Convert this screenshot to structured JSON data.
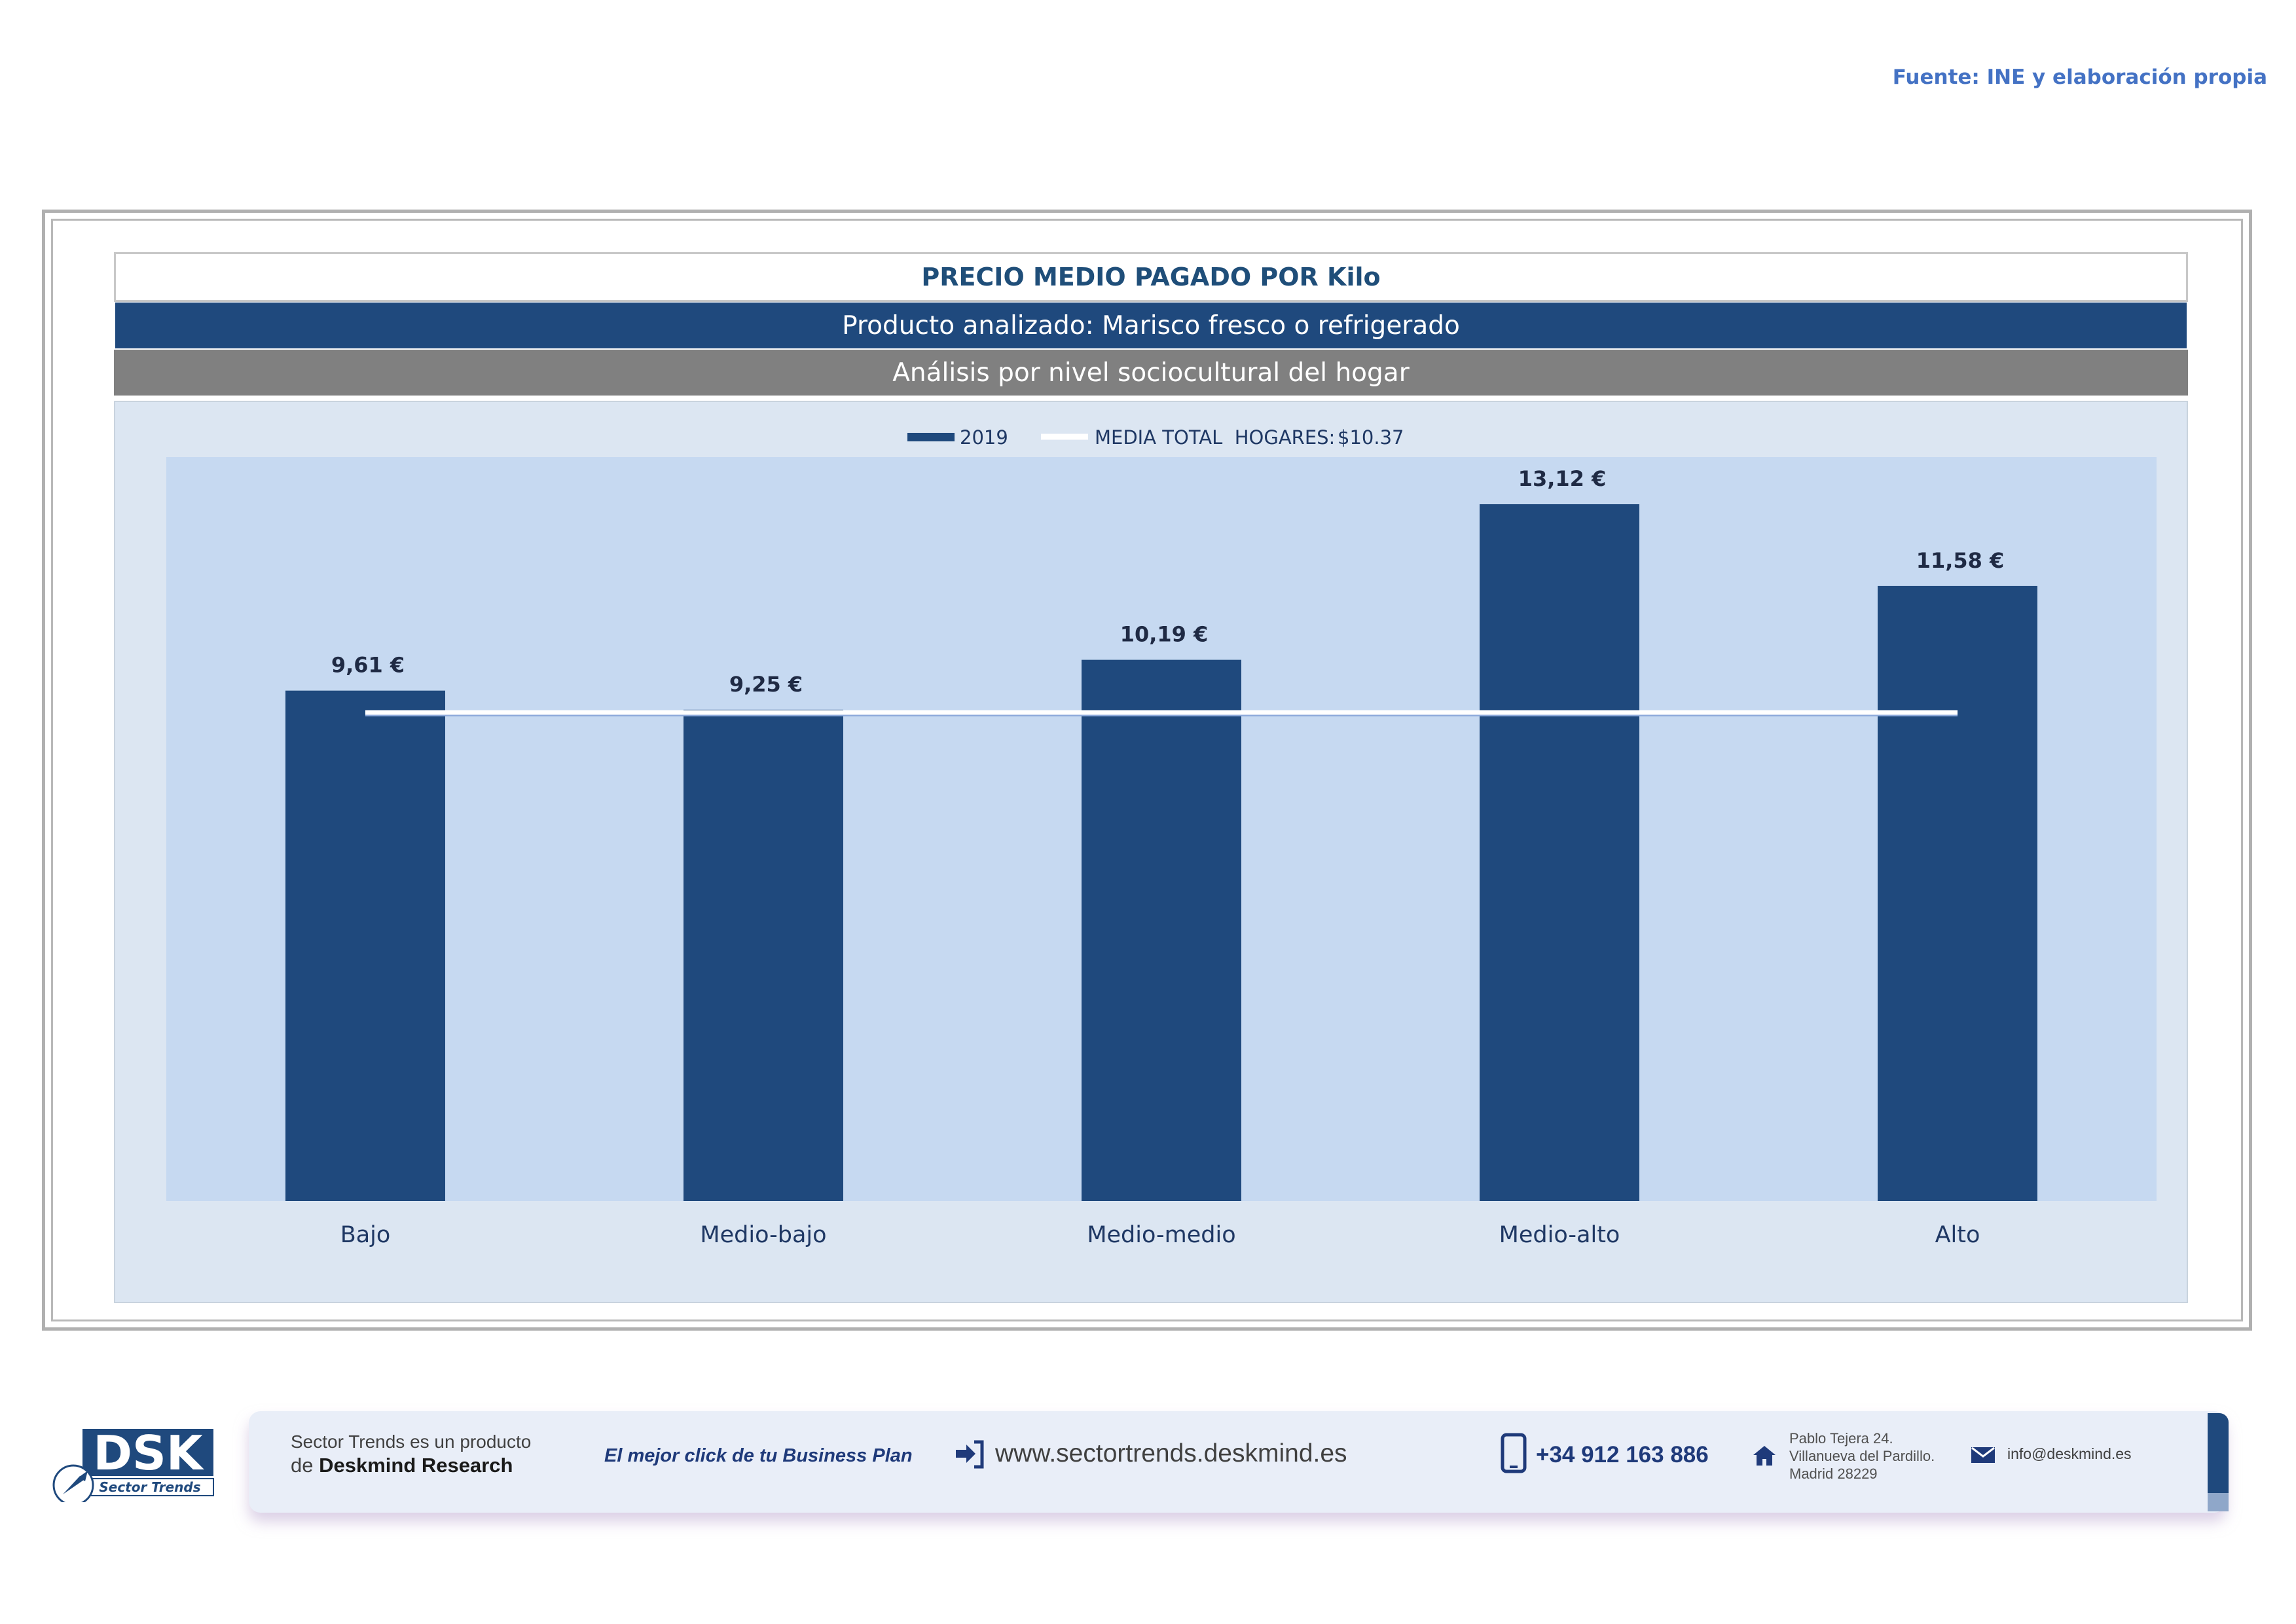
{
  "source": "Fuente: INE y elaboración propia",
  "header": {
    "title": "PRECIO MEDIO PAGADO POR Kilo",
    "product": "Producto analizado: Marisco fresco o refrigerado",
    "analysis": "Análisis por nivel sociocultural del hogar"
  },
  "chart_data": {
    "type": "bar",
    "categories": [
      "Bajo",
      "Medio-bajo",
      "Medio-medio",
      "Medio-alto",
      "Alto"
    ],
    "series": [
      {
        "name": "2019",
        "values": [
          9.61,
          9.25,
          10.19,
          13.12,
          11.58
        ],
        "color": "#1f497d"
      }
    ],
    "value_labels": [
      "9,61 €",
      "9,25 €",
      "10,19 €",
      "13,12 €",
      "11,58 €"
    ],
    "reference_line": {
      "name": "MEDIA TOTAL  HOGARES:",
      "value_label": "$10.37",
      "value": 10.37,
      "color": "#ffffff"
    },
    "ylim": [
      0,
      14
    ],
    "grid": false,
    "legend": "top",
    "plot_background": "#c6d9f1",
    "chart_background": "#dce6f2"
  },
  "footer": {
    "brand_line1": "Sector Trends es un producto",
    "brand_line2_prefix": "de",
    "brand_line2": "Deskmind Research",
    "slogan": "El mejor click de tu Business Plan",
    "website": "www.sectortrends.deskmind.es",
    "phone": "+34 912 163 886",
    "address_line1": "Pablo Tejera 24.",
    "address_line2": "Villanueva del Pardillo.",
    "address_line3": "Madrid 28229",
    "email": "info@deskmind.es",
    "logo_text": "DSK",
    "logo_subtext": "Sector Trends",
    "icons": [
      "arrow-login-icon",
      "phone-icon",
      "home-icon",
      "mail-icon",
      "rocket-icon"
    ]
  }
}
